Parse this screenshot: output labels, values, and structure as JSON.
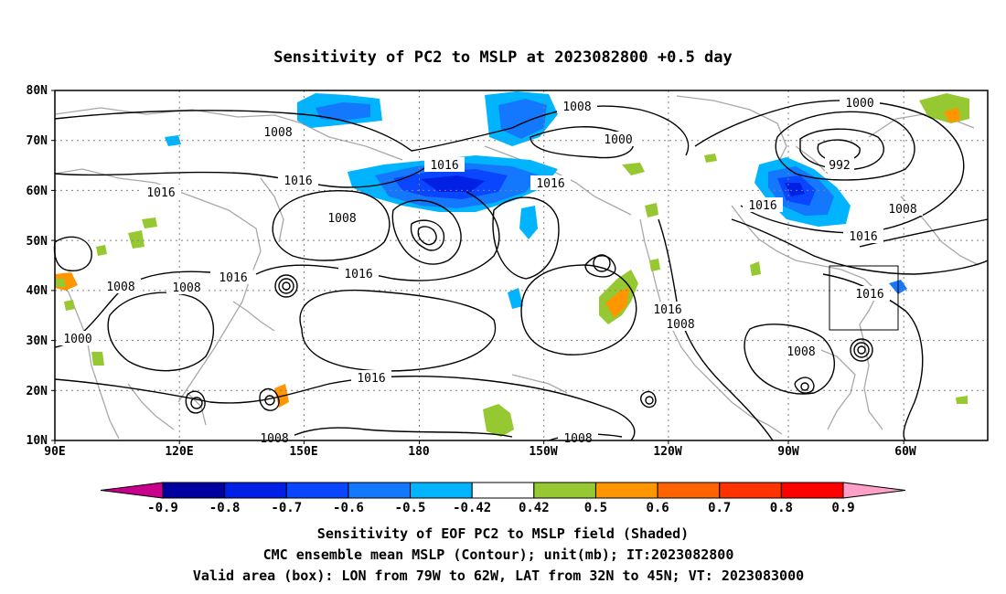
{
  "title": "Sensitivity of PC2 to MSLP at 2023082800 +0.5 day",
  "lat_labels": [
    "80N",
    "70N",
    "60N",
    "50N",
    "40N",
    "30N",
    "20N",
    "10N"
  ],
  "lon_labels": [
    "90E",
    "120E",
    "150E",
    "180",
    "150W",
    "120W",
    "90W",
    "60W"
  ],
  "contour_labels": [
    "1008",
    "1008",
    "1000",
    "1016",
    "1016",
    "1016",
    "1016",
    "1008",
    "1000",
    "1008",
    "1016",
    "992",
    "1016",
    "1008",
    "1016",
    "1016",
    "1016",
    "1008",
    "1008",
    "1000",
    "1016",
    "1008",
    "1008",
    "1008",
    "1016"
  ],
  "colorbar": {
    "values": [
      "-0.9",
      "-0.8",
      "-0.7",
      "-0.6",
      "-0.5",
      "-0.42",
      "0.42",
      "0.5",
      "0.6",
      "0.7",
      "0.8",
      "0.9"
    ],
    "colors": [
      "#c8008c",
      "#0000a0",
      "#0020e6",
      "#0a46ff",
      "#1478ff",
      "#00b4ff",
      "#ffffff",
      "#96c832",
      "#ff9600",
      "#ff6400",
      "#ff3200",
      "#ff0000",
      "#ffa0c8"
    ]
  },
  "captions": [
    "Sensitivity of EOF PC2 to MSLP field (Shaded)",
    "CMC ensemble mean MSLP (Contour); unit(mb); IT:2023082800",
    "Valid area (box): LON from 79W to 62W, LAT from 32N to 45N; VT: 2023083000"
  ]
}
